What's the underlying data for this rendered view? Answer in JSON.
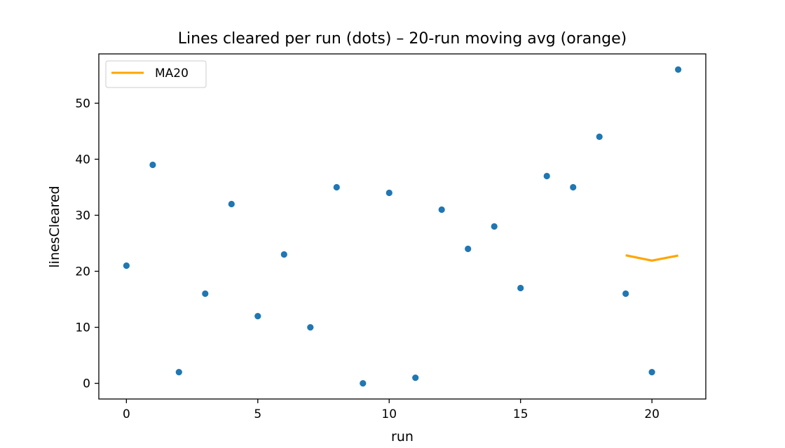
{
  "chart_data": {
    "type": "scatter",
    "title": "Lines cleared per run (dots)  –  20-run moving avg (orange)",
    "xlabel": "run",
    "ylabel": "linesCleared",
    "xlim": [
      -1.05,
      22.05
    ],
    "ylim": [
      -2.8,
      58.8
    ],
    "xticks": [
      0,
      5,
      10,
      15,
      20
    ],
    "yticks": [
      0,
      10,
      20,
      30,
      40,
      50
    ],
    "grid": false,
    "legend": {
      "placement": "top-left",
      "entries": [
        "MA20"
      ]
    },
    "series": [
      {
        "type": "scatter",
        "color": "#1f77b4",
        "x": [
          0,
          1,
          2,
          3,
          4,
          5,
          6,
          7,
          8,
          9,
          10,
          11,
          12,
          13,
          14,
          15,
          16,
          17,
          18,
          19,
          20,
          21
        ],
        "values": [
          21,
          39,
          2,
          16,
          32,
          12,
          23,
          10,
          35,
          0,
          34,
          1,
          31,
          24,
          28,
          17,
          37,
          35,
          44,
          16,
          2,
          56
        ]
      },
      {
        "type": "line",
        "name": "MA20",
        "color": "#ffa500",
        "x": [
          19,
          20,
          21
        ],
        "values": [
          22.85,
          21.9,
          22.8
        ]
      }
    ]
  }
}
